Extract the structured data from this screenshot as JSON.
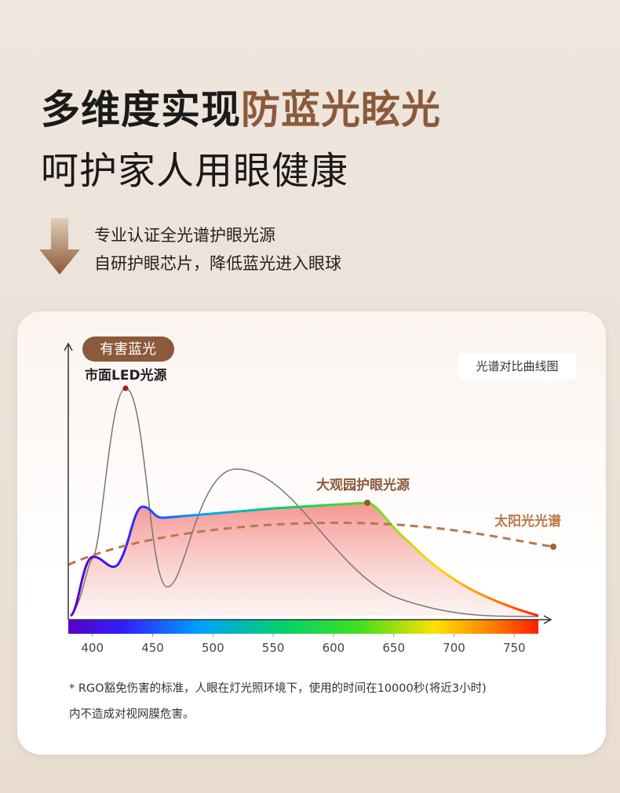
{
  "header": {
    "title_line1_dark": "多维度实现",
    "title_line1_accent": "防蓝光眩光",
    "title_line2": "呵护家人用眼健康"
  },
  "bullets": [
    "专业认证全光谱护眼光源",
    "自研护眼芯片，降低蓝光进入眼球"
  ],
  "chart": {
    "badge": "有害蓝光",
    "tag": "光谱对比曲线图",
    "curve_labels": {
      "led": "市面LED光源",
      "ours": "大观园护眼光源",
      "sun": "太阳光光谱"
    },
    "xlim": [
      380,
      770
    ],
    "xticks": [
      400,
      450,
      500,
      550,
      600,
      650,
      700,
      750
    ]
  },
  "footnote": [
    "* RGO豁免伤害的标准，人眼在灯光照环境下，使用的时间在10000秒(将近3小时)",
    "内不造成对视网膜危害。"
  ]
}
